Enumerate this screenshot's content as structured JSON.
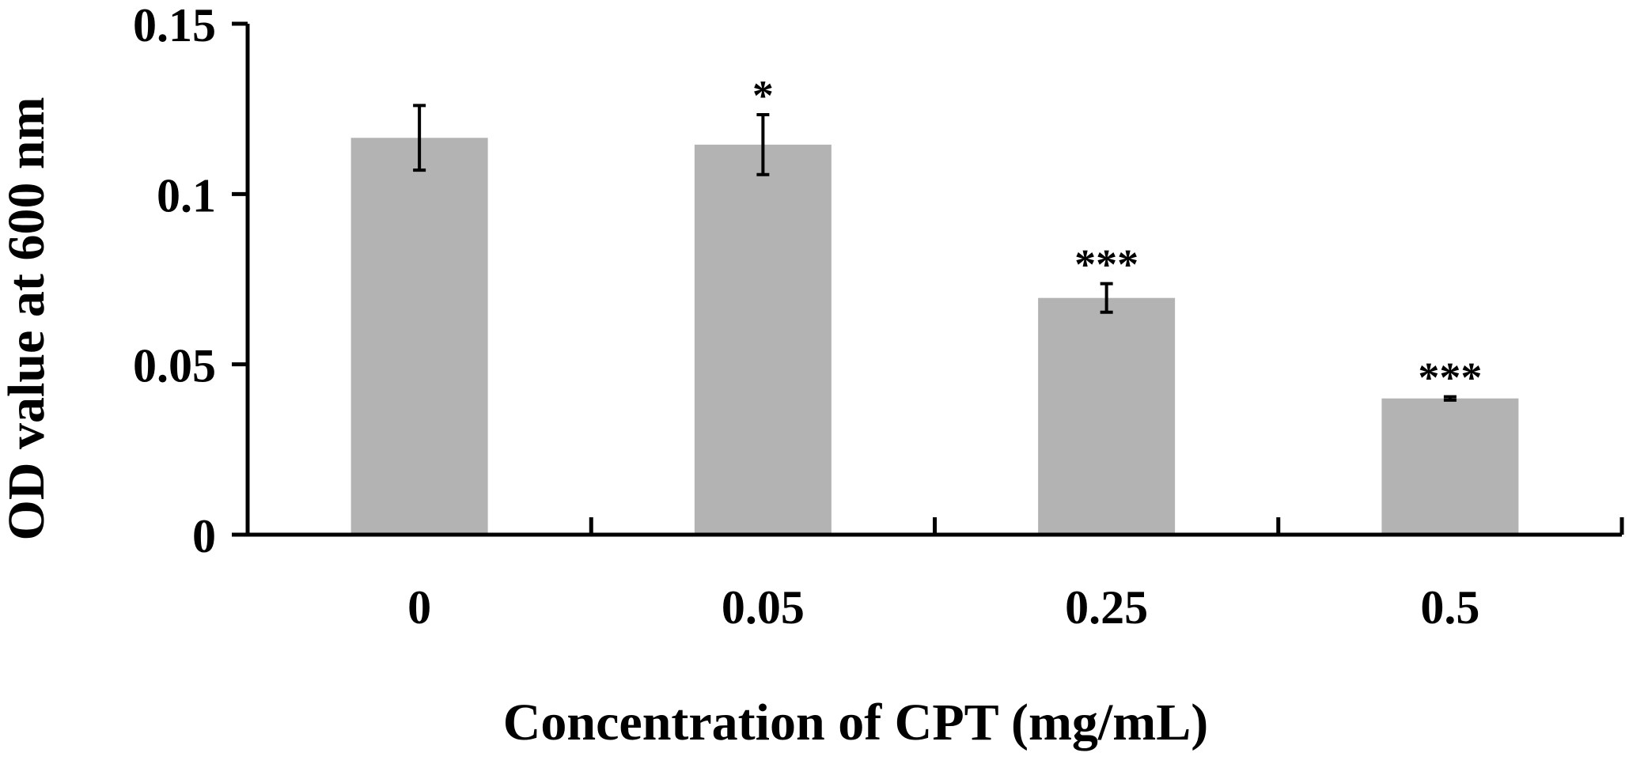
{
  "chart_data": {
    "type": "bar",
    "title": "",
    "xlabel": "Concentration of CPT (mg/mL)",
    "ylabel": "OD value at 600 nm",
    "categories": [
      "0",
      "0.05",
      "0.25",
      "0.5"
    ],
    "values": [
      0.1165,
      0.1145,
      0.0695,
      0.04
    ],
    "errors": [
      0.0095,
      0.0088,
      0.0042,
      0.0005
    ],
    "significance": [
      "",
      "*",
      "***",
      "***"
    ],
    "ylim": [
      0,
      0.15
    ],
    "yticks": [
      0,
      0.05,
      0.1,
      0.15
    ],
    "ytick_labels": [
      "0",
      "0.05",
      "0.1",
      "0.15"
    ],
    "grid": false,
    "legend": "none",
    "bar_color": "#b3b3b3",
    "axis_color": "#000000"
  }
}
